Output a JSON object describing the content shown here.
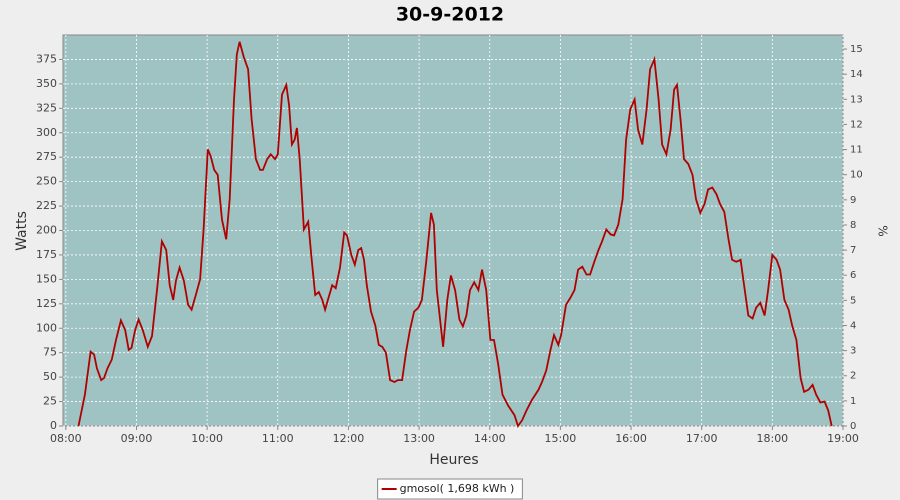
{
  "chart_data": {
    "type": "line",
    "title": "30-9-2012",
    "x_label": "Heures",
    "y_label": "Watts",
    "y2_label": "%",
    "x": [
      8.18,
      8.27,
      8.35,
      8.4,
      8.44,
      8.5,
      8.54,
      8.59,
      8.65,
      8.71,
      8.78,
      8.84,
      8.89,
      8.93,
      8.98,
      9.03,
      9.09,
      9.16,
      9.22,
      9.29,
      9.36,
      9.42,
      9.47,
      9.52,
      9.56,
      9.61,
      9.67,
      9.73,
      9.78,
      9.84,
      9.9,
      9.95,
      10.01,
      10.05,
      10.1,
      10.15,
      10.21,
      10.27,
      10.32,
      10.38,
      10.42,
      10.46,
      10.52,
      10.58,
      10.63,
      10.69,
      10.75,
      10.79,
      10.85,
      10.9,
      10.96,
      11.0,
      11.06,
      11.12,
      11.16,
      11.2,
      11.24,
      11.27,
      11.31,
      11.37,
      11.43,
      11.48,
      11.53,
      11.58,
      11.63,
      11.67,
      11.71,
      11.77,
      11.82,
      11.88,
      11.94,
      11.98,
      12.04,
      12.09,
      12.14,
      12.18,
      12.22,
      12.26,
      12.32,
      12.38,
      12.43,
      12.48,
      12.53,
      12.59,
      12.65,
      12.7,
      12.76,
      12.82,
      12.87,
      12.93,
      12.99,
      13.04,
      13.1,
      13.17,
      13.21,
      13.25,
      13.34,
      13.4,
      13.45,
      13.51,
      13.57,
      13.62,
      13.67,
      13.72,
      13.78,
      13.84,
      13.89,
      13.95,
      14.01,
      14.06,
      14.12,
      14.18,
      14.26,
      14.35,
      14.4,
      14.46,
      14.52,
      14.6,
      14.69,
      14.74,
      14.8,
      14.86,
      14.91,
      14.97,
      15.01,
      15.08,
      15.14,
      15.2,
      15.25,
      15.31,
      15.37,
      15.42,
      15.48,
      15.54,
      15.59,
      15.65,
      15.71,
      15.76,
      15.82,
      15.88,
      15.93,
      15.99,
      16.05,
      16.1,
      16.16,
      16.22,
      16.27,
      16.33,
      16.39,
      16.44,
      16.5,
      16.56,
      16.61,
      16.65,
      16.7,
      16.75,
      16.81,
      16.87,
      16.92,
      16.98,
      17.04,
      17.09,
      17.15,
      17.21,
      17.26,
      17.32,
      17.38,
      17.43,
      17.49,
      17.55,
      17.6,
      17.66,
      17.72,
      17.77,
      17.83,
      17.89,
      17.94,
      18.0,
      18.06,
      18.11,
      18.17,
      18.23,
      18.28,
      18.34,
      18.4,
      18.45,
      18.51,
      18.57,
      18.62,
      18.68,
      18.74,
      18.79,
      18.84
    ],
    "series": [
      {
        "name": "gmosol( 1,698 kWh )",
        "color": "#b00000",
        "values": [
          0,
          32,
          76,
          73,
          59,
          47,
          49,
          59,
          68,
          88,
          108,
          98,
          78,
          80,
          98,
          109,
          98,
          81,
          92,
          139,
          189,
          180,
          144,
          129,
          149,
          162,
          149,
          124,
          119,
          134,
          150,
          201,
          283,
          276,
          262,
          257,
          211,
          191,
          232,
          334,
          380,
          393,
          377,
          365,
          314,
          273,
          262,
          262,
          273,
          278,
          273,
          278,
          339,
          349,
          328,
          288,
          293,
          305,
          273,
          201,
          209,
          170,
          134,
          137,
          129,
          119,
          129,
          144,
          141,
          162,
          198,
          195,
          175,
          165,
          180,
          182,
          170,
          144,
          117,
          103,
          83,
          81,
          75,
          47,
          45,
          47,
          47,
          78,
          98,
          117,
          121,
          129,
          168,
          218,
          206,
          139,
          81,
          129,
          154,
          139,
          109,
          102,
          113,
          139,
          147,
          139,
          160,
          139,
          88,
          88,
          63,
          32,
          21,
          11,
          0,
          6,
          16,
          27,
          37,
          45,
          57,
          78,
          93,
          83,
          93,
          124,
          131,
          139,
          160,
          163,
          155,
          155,
          168,
          180,
          189,
          201,
          196,
          195,
          206,
          232,
          293,
          324,
          334,
          303,
          288,
          324,
          365,
          375,
          334,
          288,
          278,
          303,
          344,
          349,
          314,
          273,
          268,
          257,
          232,
          218,
          227,
          242,
          244,
          237,
          227,
          219,
          191,
          170,
          168,
          170,
          144,
          113,
          110,
          121,
          126,
          113,
          139,
          175,
          170,
          160,
          129,
          119,
          103,
          88,
          49,
          35,
          37,
          42,
          32,
          24,
          25,
          16,
          0
        ]
      }
    ],
    "xlim": [
      7.96,
      19.0
    ],
    "xticks": [
      {
        "value": 8,
        "label": "08:00"
      },
      {
        "value": 9,
        "label": "09:00"
      },
      {
        "value": 10,
        "label": "10:00"
      },
      {
        "value": 11,
        "label": "11:00"
      },
      {
        "value": 12,
        "label": "12:00"
      },
      {
        "value": 13,
        "label": "13:00"
      },
      {
        "value": 14,
        "label": "14:00"
      },
      {
        "value": 15,
        "label": "15:00"
      },
      {
        "value": 16,
        "label": "16:00"
      },
      {
        "value": 17,
        "label": "17:00"
      },
      {
        "value": 18,
        "label": "18:00"
      },
      {
        "value": 19,
        "label": "19:00"
      }
    ],
    "ylim": [
      0,
      400
    ],
    "yticks": [
      0,
      25,
      50,
      75,
      100,
      125,
      150,
      175,
      200,
      225,
      250,
      275,
      300,
      325,
      350,
      375
    ],
    "y2lim": [
      0,
      15.56
    ],
    "y2ticks": [
      0,
      1,
      2,
      3,
      4,
      5,
      6,
      7,
      8,
      9,
      10,
      11,
      12,
      13,
      14,
      15
    ],
    "grid": true,
    "plot_background": "#9fc3c3",
    "legend": "bottom"
  }
}
